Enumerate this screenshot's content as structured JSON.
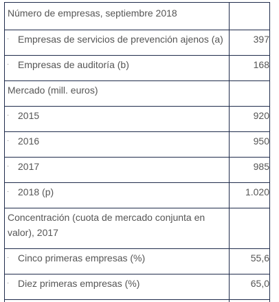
{
  "table": {
    "rows": [
      {
        "label": "Número de empresas, septiembre 2018",
        "value": "",
        "sub": false
      },
      {
        "label": "Empresas de servicios de prevención ajenos (a)",
        "value": "397",
        "sub": true
      },
      {
        "label": "Empresas de auditoría (b)",
        "value": "168",
        "sub": true
      },
      {
        "label": "Mercado (mill. euros)",
        "value": "",
        "sub": false
      },
      {
        "label": "2015",
        "value": "920",
        "sub": true
      },
      {
        "label": "2016",
        "value": "950",
        "sub": true
      },
      {
        "label": "2017",
        "value": "985",
        "sub": true
      },
      {
        "label": "2018 (p)",
        "value": "1.020",
        "sub": true
      },
      {
        "label": "Concentración (cuota de mercado conjunta en valor), 2017",
        "value": "",
        "sub": false
      },
      {
        "label": "Cinco primeras empresas (%)",
        "value": "55,6",
        "sub": true
      },
      {
        "label": "Diez primeras empresas (%)",
        "value": "65,0",
        "sub": true
      }
    ],
    "bullet_glyph": "·"
  }
}
